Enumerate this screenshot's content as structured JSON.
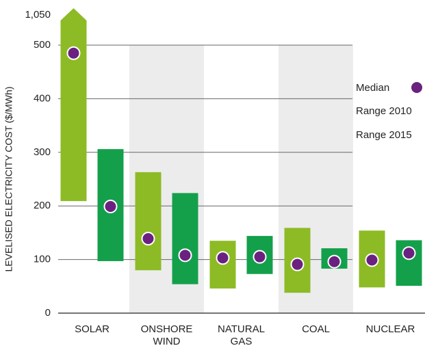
{
  "chart_data": {
    "type": "range_bar",
    "y_axis_label": "LEVELISED ELECTRICITY COST ($/MWh)",
    "categories": [
      "SOLAR",
      "ONSHORE WIND",
      "NATURAL GAS",
      "COAL",
      "NUCLEAR"
    ],
    "series": [
      {
        "name": "Range 2010",
        "color": "#8dbb25",
        "low": [
          209,
          80,
          46,
          38,
          48
        ],
        "high": [
          1050,
          263,
          135,
          159,
          154
        ],
        "medians": [
          485,
          139,
          103,
          91,
          99
        ]
      },
      {
        "name": "Range 2015",
        "color": "#14a04b",
        "low": [
          97,
          54,
          73,
          83,
          51
        ],
        "high": [
          306,
          224,
          144,
          121,
          136
        ],
        "medians": [
          199,
          108,
          105,
          96,
          112
        ]
      }
    ],
    "median": {
      "name": "Median",
      "color": "#6b2180"
    },
    "ylim": [
      0,
      1050
    ],
    "yticks": [
      0,
      100,
      200,
      300,
      400,
      500,
      {
        "value": 1050,
        "label": "1,050"
      }
    ],
    "axis_break": true,
    "grid": true
  }
}
